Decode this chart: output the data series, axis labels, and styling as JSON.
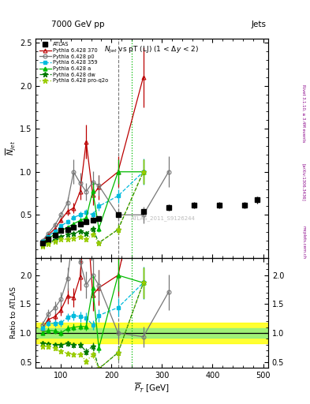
{
  "title_main": "7000 GeV pp",
  "title_right": "Jets",
  "plot_title": "$N_{jet}$ vs pT (LJ) (1 < $\\Delta y$ < 2)",
  "xlabel": "$\\overline{P}_T$ [GeV]",
  "ylabel_main": "$\\overline{N}_{jet}$",
  "ylabel_ratio": "Ratio to ATLAS",
  "watermark": "ATLAS_2011_S9126244",
  "rivet_label": "Rivet 3.1.10, ≥ 3.4M events",
  "arxiv_label": "[arXiv:1306.3436]",
  "mcplots_label": "mcplots.cern.ch",
  "atlas_x": [
    63,
    75,
    88,
    100,
    113,
    125,
    138,
    150,
    163,
    175,
    213,
    263,
    313,
    363,
    413,
    463,
    488
  ],
  "atlas_y": [
    0.175,
    0.215,
    0.265,
    0.315,
    0.33,
    0.36,
    0.39,
    0.42,
    0.44,
    0.46,
    0.5,
    0.535,
    0.585,
    0.615,
    0.615,
    0.615,
    0.675
  ],
  "atlas_yerr": [
    0.008,
    0.01,
    0.012,
    0.013,
    0.014,
    0.015,
    0.016,
    0.018,
    0.019,
    0.02,
    0.023,
    0.028,
    0.034,
    0.037,
    0.037,
    0.037,
    0.042
  ],
  "p359_x": [
    63,
    75,
    88,
    100,
    113,
    125,
    138,
    150,
    163,
    175,
    213,
    263
  ],
  "p359_y": [
    0.19,
    0.25,
    0.31,
    0.37,
    0.42,
    0.47,
    0.5,
    0.53,
    0.5,
    0.6,
    0.72,
    1.0
  ],
  "p359_yerr": [
    0.008,
    0.012,
    0.016,
    0.02,
    0.024,
    0.03,
    0.035,
    0.04,
    0.038,
    0.05,
    0.08,
    0.15
  ],
  "p370_x": [
    63,
    75,
    88,
    100,
    113,
    125,
    138,
    150,
    163,
    175,
    213,
    263
  ],
  "p370_y": [
    0.19,
    0.265,
    0.34,
    0.44,
    0.54,
    0.58,
    0.77,
    1.35,
    0.73,
    0.82,
    1.0,
    2.1
  ],
  "p370_yerr": [
    0.008,
    0.013,
    0.02,
    0.03,
    0.045,
    0.06,
    0.09,
    0.2,
    0.12,
    0.14,
    0.18,
    0.35
  ],
  "pa_x": [
    63,
    75,
    88,
    100,
    113,
    125,
    138,
    150,
    163,
    175,
    213,
    263
  ],
  "pa_y": [
    0.175,
    0.225,
    0.275,
    0.315,
    0.355,
    0.395,
    0.435,
    0.465,
    0.78,
    0.34,
    1.0,
    1.0
  ],
  "pa_yerr": [
    0.007,
    0.01,
    0.013,
    0.016,
    0.019,
    0.022,
    0.026,
    0.03,
    0.1,
    0.04,
    0.14,
    0.14
  ],
  "pdw_x": [
    63,
    75,
    88,
    100,
    113,
    125,
    138,
    150,
    163,
    175,
    213,
    263
  ],
  "pdw_y": [
    0.145,
    0.175,
    0.21,
    0.25,
    0.27,
    0.285,
    0.31,
    0.285,
    0.34,
    0.175,
    0.33,
    1.0
  ],
  "pdw_yerr": [
    0.006,
    0.008,
    0.01,
    0.013,
    0.015,
    0.018,
    0.022,
    0.025,
    0.03,
    0.02,
    0.06,
    0.14
  ],
  "pp0_x": [
    63,
    75,
    88,
    100,
    113,
    125,
    138,
    150,
    163,
    175,
    213,
    263,
    313
  ],
  "pp0_y": [
    0.2,
    0.285,
    0.38,
    0.5,
    0.64,
    1.0,
    0.87,
    0.77,
    0.88,
    0.84,
    0.5,
    0.5,
    1.0
  ],
  "pp0_yerr": [
    0.01,
    0.018,
    0.028,
    0.038,
    0.065,
    0.14,
    0.12,
    0.1,
    0.13,
    0.12,
    0.075,
    0.095,
    0.18
  ],
  "pproq2o_x": [
    63,
    75,
    88,
    100,
    113,
    125,
    138,
    150,
    163,
    175,
    213,
    263
  ],
  "pproq2o_y": [
    0.135,
    0.165,
    0.195,
    0.215,
    0.215,
    0.225,
    0.245,
    0.215,
    0.275,
    0.175,
    0.33,
    1.0
  ],
  "pproq2o_yerr": [
    0.006,
    0.008,
    0.01,
    0.011,
    0.012,
    0.014,
    0.016,
    0.02,
    0.028,
    0.02,
    0.055,
    0.14
  ],
  "vline1_x": 213,
  "vline2_x": 240,
  "color_atlas": "#000000",
  "color_p359": "#00bbdd",
  "color_p370": "#bb0000",
  "color_pa": "#00bb00",
  "color_pdw": "#007700",
  "color_pp0": "#777777",
  "color_pproq2o": "#99cc00",
  "ylim_main": [
    0.0,
    2.55
  ],
  "ylim_ratio": [
    0.4,
    2.3
  ],
  "xlim": [
    50,
    510
  ],
  "yticks_main": [
    0.5,
    1.0,
    1.5,
    2.0,
    2.5
  ],
  "yticks_ratio_left": [
    0.5,
    1.0,
    1.5,
    2.0
  ],
  "yticks_ratio_right": [
    0.5,
    1.0,
    1.5,
    2.0
  ],
  "band_yellow_lo": 0.82,
  "band_yellow_hi": 1.18,
  "band_green_lo": 0.92,
  "band_green_hi": 1.08
}
